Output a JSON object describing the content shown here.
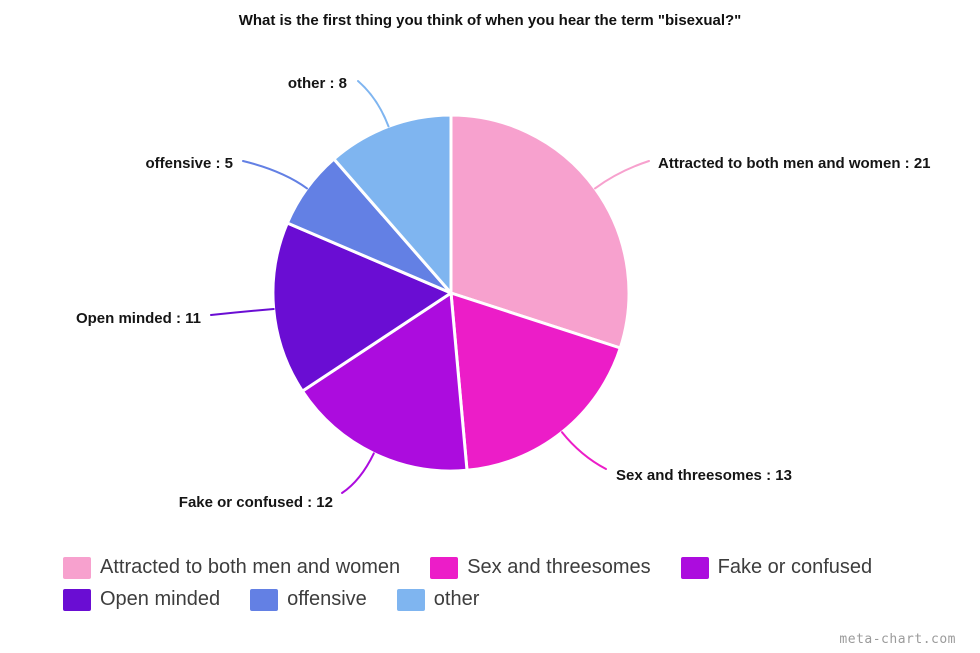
{
  "title": "What is the first thing you think of when you hear the term \"bisexual?\"",
  "watermark": "meta-chart.com",
  "chart_data": {
    "type": "pie",
    "title": "What is the first thing you think of when you hear the term \"bisexual?\"",
    "total": 70,
    "start_angle_deg": 0,
    "direction": "clockwise",
    "label_format": "{label} : {value}",
    "legend_position": "bottom",
    "slices": [
      {
        "label": "Attracted to both men and women",
        "value": 21,
        "color": "#F7A1CE"
      },
      {
        "label": "Sex and threesomes",
        "value": 13,
        "color": "#EC1DC8"
      },
      {
        "label": "Fake or confused",
        "value": 12,
        "color": "#AC0CDE"
      },
      {
        "label": "Open minded",
        "value": 11,
        "color": "#6A0DD3"
      },
      {
        "label": "offensive",
        "value": 5,
        "color": "#6380E4"
      },
      {
        "label": "other",
        "value": 8,
        "color": "#7FB5F0"
      }
    ]
  }
}
